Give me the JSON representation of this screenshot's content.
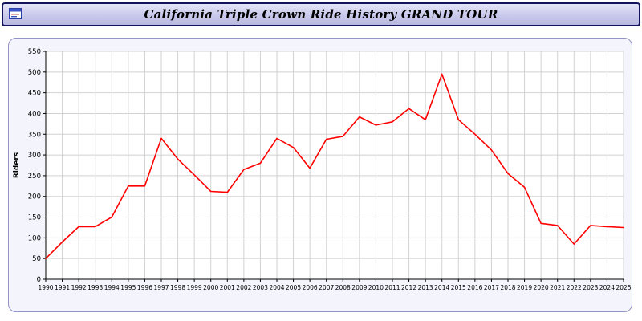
{
  "header": {
    "title": "California Triple Crown Ride History GRAND TOUR",
    "icon": "window-icon"
  },
  "chart_data": {
    "type": "line",
    "title": "California Triple Crown Ride History GRAND TOUR",
    "xlabel": "",
    "ylabel": "Riders",
    "x": [
      1990,
      1991,
      1992,
      1993,
      1994,
      1995,
      1996,
      1997,
      1998,
      1999,
      2000,
      2001,
      2002,
      2003,
      2004,
      2005,
      2006,
      2007,
      2008,
      2009,
      2010,
      2011,
      2012,
      2013,
      2014,
      2015,
      2016,
      2017,
      2018,
      2019,
      2020,
      2021,
      2022,
      2023,
      2024,
      2025
    ],
    "series": [
      {
        "name": "Riders",
        "color": "#ff0000",
        "values": [
          50,
          90,
          127,
          127,
          150,
          225,
          225,
          340,
          290,
          252,
          212,
          210,
          265,
          280,
          340,
          318,
          268,
          338,
          345,
          392,
          372,
          380,
          412,
          385,
          495,
          385,
          350,
          312,
          255,
          222,
          135,
          130,
          85,
          130,
          127,
          125
        ]
      }
    ],
    "ylim": [
      0,
      550
    ],
    "ytick_step": 50,
    "grid": true,
    "legend_position": "none",
    "plot_bg": "#ffffff",
    "grid_color": "#d2d2d2",
    "axis_color": "#000000"
  }
}
